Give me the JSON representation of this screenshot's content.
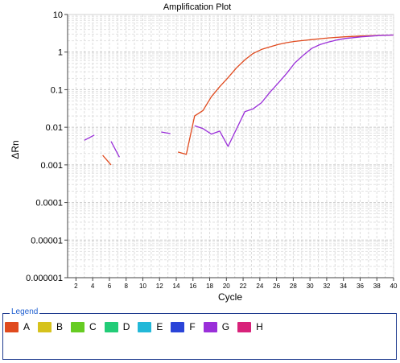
{
  "chart_data": {
    "type": "line",
    "title": "Amplification Plot",
    "xlabel": "Cycle",
    "ylabel": "ΔRn",
    "yscale": "log",
    "xlim": [
      1,
      40
    ],
    "ylim": [
      1e-06,
      10
    ],
    "xticks": [
      "2",
      "4",
      "6",
      "8",
      "10",
      "12",
      "14",
      "16",
      "18",
      "20",
      "22",
      "24",
      "26",
      "28",
      "30",
      "32",
      "34",
      "36",
      "38",
      "40"
    ],
    "yticks": [
      "0.000001",
      "0.00001",
      "0.0001",
      "0.001",
      "0.01",
      "0.1",
      "1",
      "10"
    ],
    "grid": true,
    "series": [
      {
        "name": "A",
        "color": "#e04a1e",
        "segments": [
          [
            [
              5.2,
              0.0018
            ],
            [
              6.2,
              0.001
            ]
          ],
          [
            [
              14.2,
              0.0022
            ],
            [
              15.2,
              0.0019
            ],
            [
              16.2,
              0.02
            ],
            [
              17.2,
              0.028
            ],
            [
              18.2,
              0.065
            ],
            [
              19.2,
              0.12
            ],
            [
              20.2,
              0.21
            ],
            [
              21.2,
              0.38
            ],
            [
              22.2,
              0.62
            ],
            [
              23.2,
              0.92
            ],
            [
              24.2,
              1.18
            ],
            [
              25.2,
              1.38
            ],
            [
              26.2,
              1.6
            ],
            [
              27.2,
              1.78
            ],
            [
              28.2,
              1.93
            ],
            [
              30.2,
              2.15
            ],
            [
              32.2,
              2.38
            ],
            [
              34.2,
              2.55
            ],
            [
              36.2,
              2.68
            ],
            [
              38.2,
              2.78
            ],
            [
              40,
              2.85
            ]
          ]
        ]
      },
      {
        "name": "G",
        "color": "#9a2fd9",
        "segments": [
          [
            [
              3.0,
              0.0045
            ],
            [
              4.2,
              0.0062
            ]
          ],
          [
            [
              6.2,
              0.0042
            ],
            [
              7.2,
              0.0016
            ]
          ],
          [
            [
              12.2,
              0.0075
            ],
            [
              13.3,
              0.0068
            ]
          ],
          [
            [
              16.2,
              0.011
            ],
            [
              17.2,
              0.0092
            ],
            [
              18.2,
              0.0066
            ],
            [
              19.2,
              0.0079
            ],
            [
              20.2,
              0.0031
            ],
            [
              22.2,
              0.026
            ],
            [
              23.2,
              0.031
            ],
            [
              24.2,
              0.045
            ],
            [
              25.2,
              0.085
            ],
            [
              26.2,
              0.15
            ],
            [
              27.2,
              0.27
            ],
            [
              28.2,
              0.52
            ],
            [
              29.2,
              0.82
            ],
            [
              30.2,
              1.25
            ],
            [
              31.2,
              1.58
            ],
            [
              32.2,
              1.85
            ],
            [
              33.2,
              2.1
            ],
            [
              34.2,
              2.3
            ],
            [
              36.2,
              2.55
            ],
            [
              38.2,
              2.75
            ],
            [
              40,
              2.85
            ]
          ]
        ]
      }
    ]
  },
  "legend": {
    "title": "Legend",
    "items": [
      {
        "label": "A",
        "color": "#e04a1e"
      },
      {
        "label": "B",
        "color": "#d6c21c"
      },
      {
        "label": "C",
        "color": "#66cc22"
      },
      {
        "label": "D",
        "color": "#22cc77"
      },
      {
        "label": "E",
        "color": "#22b8d8"
      },
      {
        "label": "F",
        "color": "#2a44d8"
      },
      {
        "label": "G",
        "color": "#9a2fd9"
      },
      {
        "label": "H",
        "color": "#d8227a"
      }
    ]
  }
}
